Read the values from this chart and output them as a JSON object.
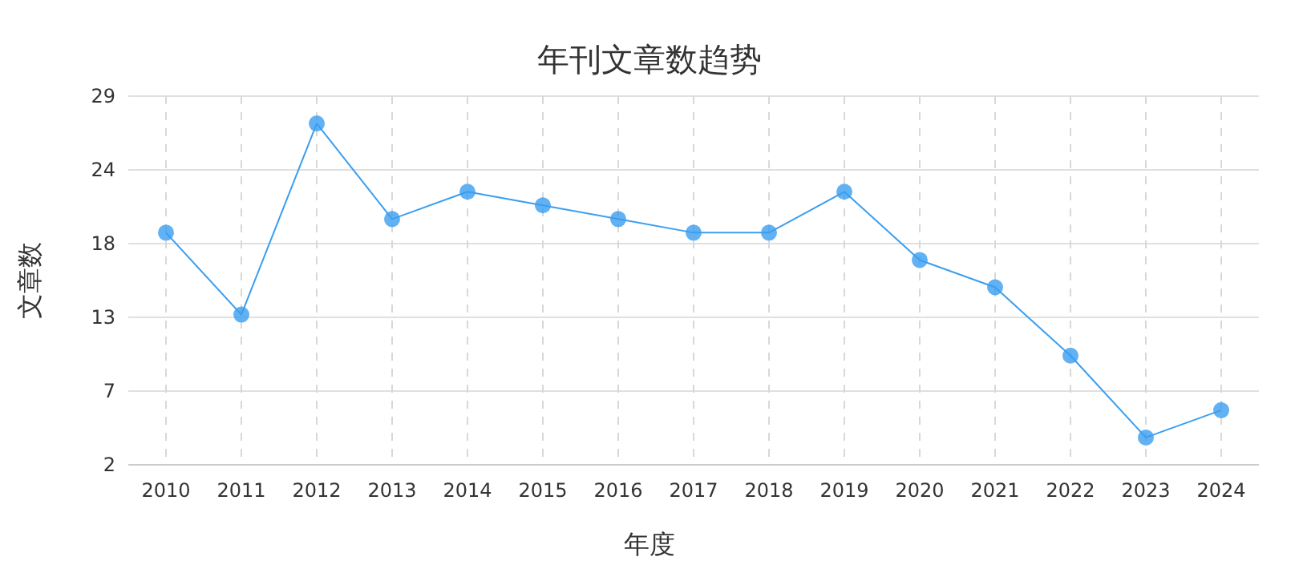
{
  "chart_data": {
    "type": "line",
    "title": "年刊文章数趋势",
    "xlabel": "年度",
    "ylabel": "文章数",
    "categories": [
      "2010",
      "2011",
      "2012",
      "2013",
      "2014",
      "2015",
      "2016",
      "2017",
      "2018",
      "2019",
      "2020",
      "2021",
      "2022",
      "2023",
      "2024"
    ],
    "series": [
      {
        "color": "#3a9ef0",
        "values": [
          19,
          13,
          27,
          20,
          22,
          21,
          20,
          19,
          19,
          22,
          17,
          15,
          10,
          4,
          6
        ]
      }
    ],
    "ylim": [
      2,
      29
    ],
    "yticks": [
      2,
      {
        "value": 7.4,
        "label": "7"
      },
      {
        "value": 12.8,
        "label": "13"
      },
      {
        "value": 18.2,
        "label": "18"
      },
      {
        "value": 23.6,
        "label": "24"
      },
      29
    ],
    "grid": true,
    "marker": "circle"
  }
}
